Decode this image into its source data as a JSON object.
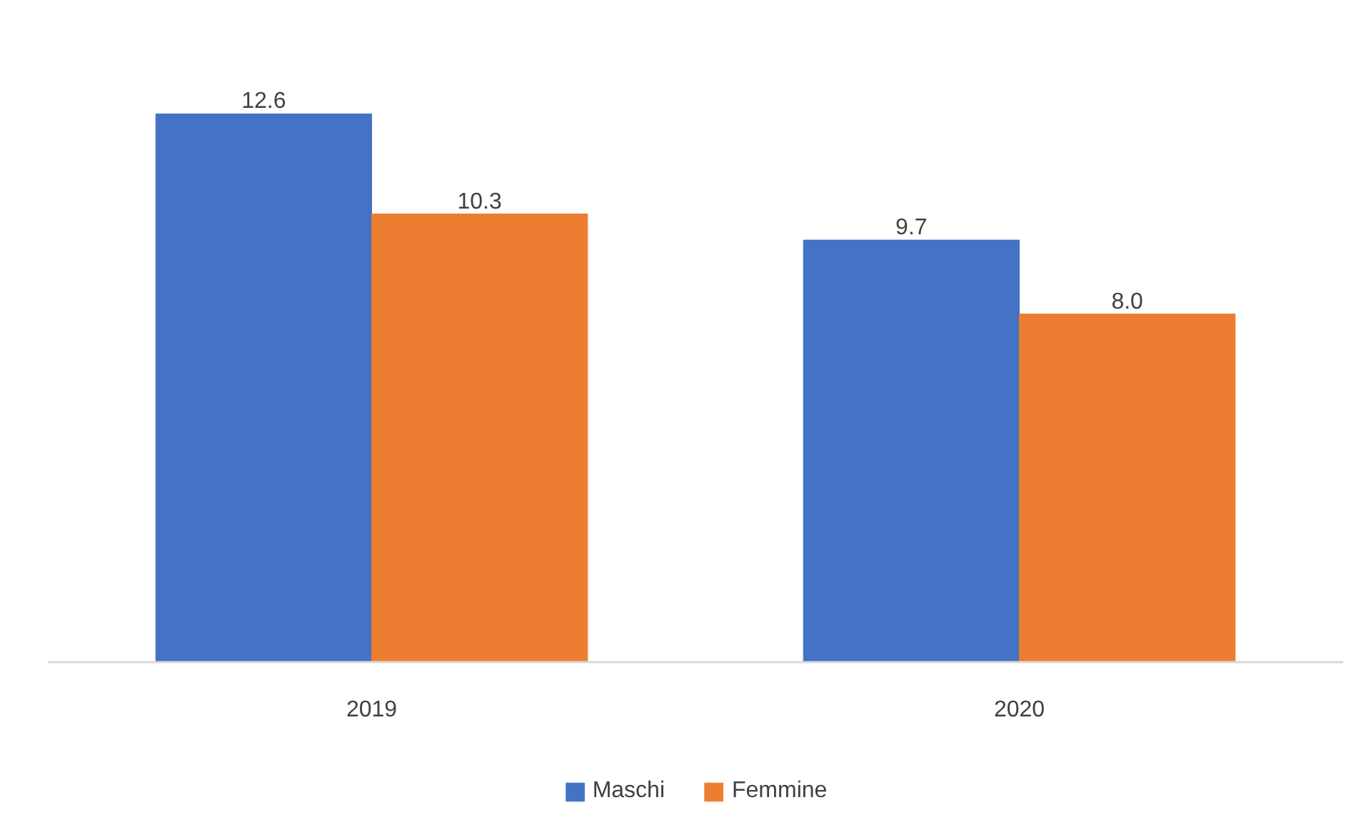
{
  "chart_data": {
    "type": "bar",
    "categories": [
      "2019",
      "2020"
    ],
    "series": [
      {
        "name": "Maschi",
        "color": "#4472c4",
        "values": [
          12.6,
          9.7
        ],
        "value_labels": [
          "12.6",
          "9.7"
        ]
      },
      {
        "name": "Femmine",
        "color": "#ed7d31",
        "values": [
          10.3,
          8
        ],
        "value_labels": [
          "10.3",
          "8.0"
        ]
      }
    ],
    "grid": false,
    "legend": "bottom",
    "tick_labels": "x"
  }
}
